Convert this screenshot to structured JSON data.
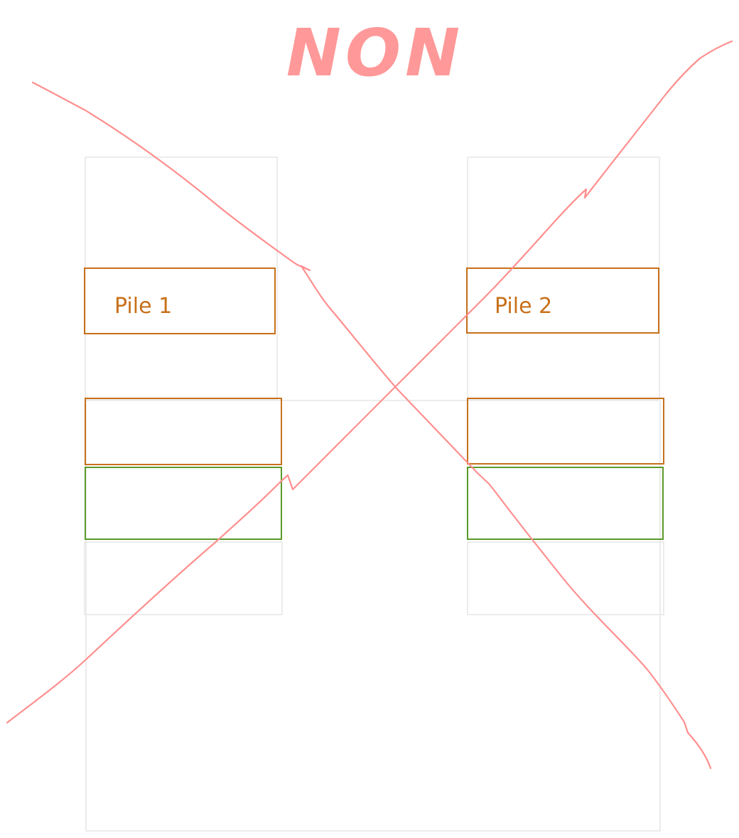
{
  "title": "NON",
  "piles": [
    {
      "label": "Pile 1"
    },
    {
      "label": "Pile 2"
    }
  ],
  "colors": {
    "title": "#ff9999",
    "cross": "#ff8f8f",
    "orange": "#c8701a",
    "green": "#5a9a2a",
    "faint": "#e6e6e6"
  }
}
